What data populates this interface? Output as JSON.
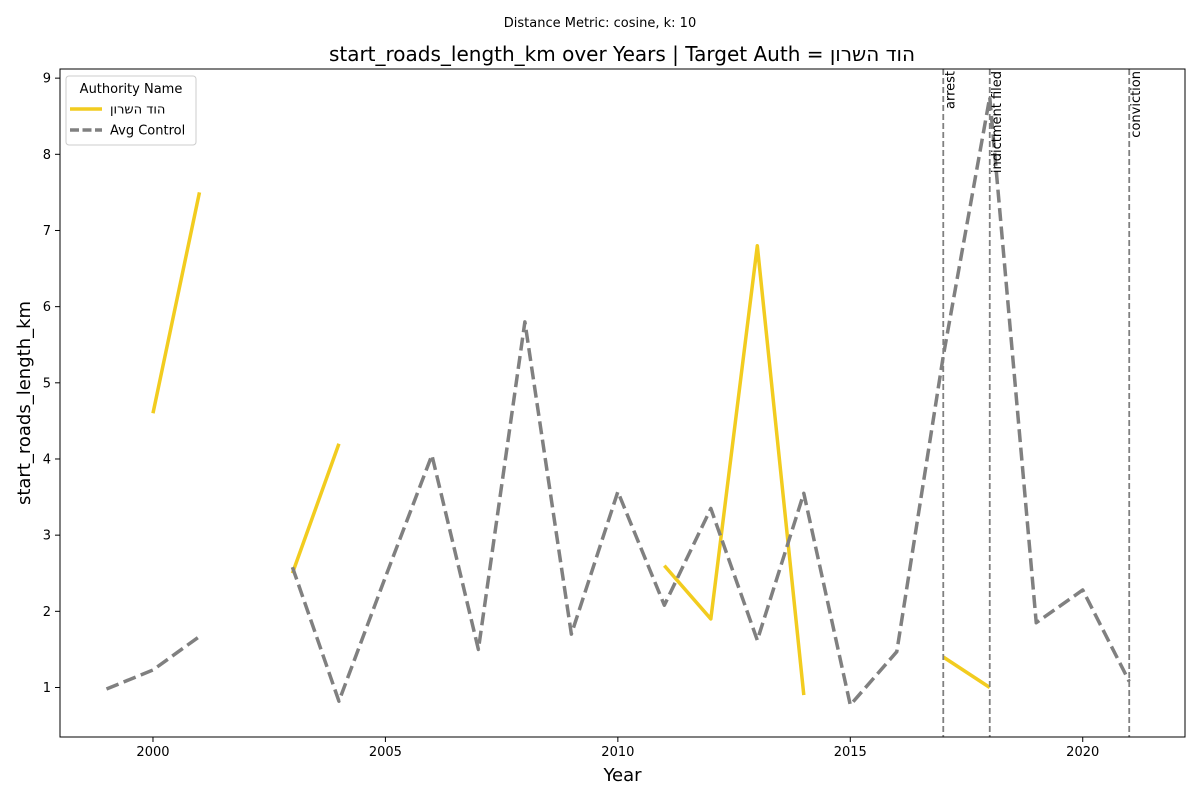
{
  "chart_data": {
    "type": "line",
    "suptitle": "Distance Metric: cosine, k: 10",
    "title": "start_roads_length_km over Years | Target Auth = הוד השרון",
    "xlabel": "Year",
    "ylabel": "start_roads_length_km",
    "xlim": [
      1998,
      2022.2
    ],
    "ylim": [
      0.35,
      9.12
    ],
    "xticks": [
      2000,
      2005,
      2010,
      2015,
      2020
    ],
    "yticks": [
      1,
      2,
      3,
      4,
      5,
      6,
      7,
      8,
      9
    ],
    "grid": false,
    "legend": {
      "title": "Authority Name",
      "placement": "top-left"
    },
    "series": [
      {
        "name": "הוד השרון",
        "color": "#f2cc1f",
        "style": "solid",
        "points": [
          [
            2000,
            4.6
          ],
          [
            2001,
            7.5
          ],
          [
            2002,
            null
          ],
          [
            2003,
            2.5
          ],
          [
            2004,
            4.2
          ],
          [
            2005,
            null
          ],
          [
            2011,
            2.6
          ],
          [
            2012,
            1.9
          ],
          [
            2013,
            6.8
          ],
          [
            2014,
            0.9
          ],
          [
            2015,
            null
          ],
          [
            2017,
            1.4
          ],
          [
            2018,
            1.0
          ]
        ]
      },
      {
        "name": "Avg Control",
        "color": "#808080",
        "style": "dashed",
        "points": [
          [
            1999,
            0.98
          ],
          [
            2000,
            1.23
          ],
          [
            2001,
            1.67
          ],
          [
            2002,
            null
          ],
          [
            2003,
            2.58
          ],
          [
            2004,
            0.82
          ],
          [
            2005,
            2.45
          ],
          [
            2006,
            4.05
          ],
          [
            2007,
            1.5
          ],
          [
            2008,
            5.8
          ],
          [
            2009,
            1.7
          ],
          [
            2010,
            3.57
          ],
          [
            2011,
            2.08
          ],
          [
            2012,
            3.35
          ],
          [
            2013,
            1.62
          ],
          [
            2014,
            3.55
          ],
          [
            2015,
            0.77
          ],
          [
            2016,
            1.47
          ],
          [
            2017,
            5.35
          ],
          [
            2018,
            8.75
          ],
          [
            2019,
            1.85
          ],
          [
            2020,
            2.28
          ],
          [
            2021,
            1.08
          ]
        ]
      }
    ],
    "events": [
      {
        "x": 2017,
        "label": "arrest"
      },
      {
        "x": 2018,
        "label": "indictment filed"
      },
      {
        "x": 2021,
        "label": "conviction"
      }
    ]
  }
}
